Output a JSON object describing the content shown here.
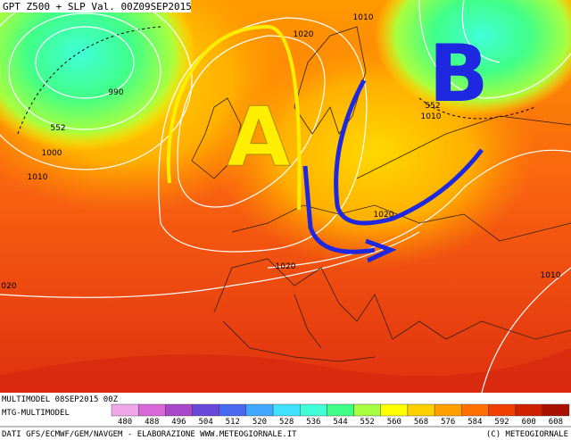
{
  "header": {
    "title": "GPT Z500 + SLP Val. 00Z09SEP2015"
  },
  "map": {
    "pressure_centers": [
      "A",
      "B"
    ],
    "contour_labels": [
      "1010",
      "1020",
      "990",
      "552",
      "1000",
      "1010",
      "552",
      "1010",
      "1020",
      "1020",
      "020",
      "1010"
    ]
  },
  "footer": {
    "run": "MULTIMODEL 08SEP2015 00Z",
    "model": "MTG-MULTIMODEL",
    "credits": "DATI GFS/ECMWF/GEM/NAVGEM - ELABORAZIONE WWW.METEOGIORNALE.IT",
    "copyright": "(C) METEOGIORNALE"
  },
  "legend": {
    "values": [
      480,
      488,
      496,
      504,
      512,
      520,
      528,
      536,
      544,
      552,
      560,
      568,
      576,
      584,
      592,
      600,
      608
    ],
    "colors": [
      "#f0a8e8",
      "#d868d8",
      "#a848c8",
      "#6848d8",
      "#4868f0",
      "#40a8ff",
      "#40e0ff",
      "#40ffd8",
      "#40ff88",
      "#a8ff40",
      "#ffff00",
      "#ffd000",
      "#ffa000",
      "#ff7000",
      "#f04000",
      "#d02000",
      "#a81000"
    ]
  }
}
